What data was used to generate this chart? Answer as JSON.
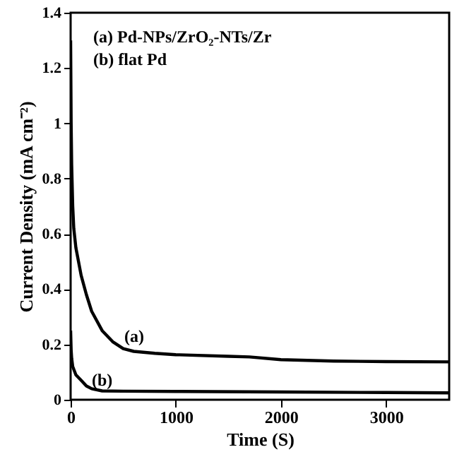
{
  "chart_data": {
    "type": "line",
    "xlabel": "Time (S)",
    "ylabel": "Current  Density (mA cm⁻²)",
    "series": [
      {
        "color": "#000000",
        "x": [
          0,
          5,
          10,
          20,
          30,
          50,
          100,
          150,
          200,
          300,
          400,
          500,
          600,
          800,
          1000,
          1500,
          1700,
          2000,
          2500,
          3000,
          3600
        ],
        "values": [
          1.3,
          1.0,
          0.85,
          0.7,
          0.62,
          0.55,
          0.45,
          0.38,
          0.32,
          0.25,
          0.21,
          0.185,
          0.175,
          0.168,
          0.163,
          0.157,
          0.155,
          0.145,
          0.14,
          0.138,
          0.137
        ]
      },
      {
        "color": "#000000",
        "x": [
          0,
          5,
          10,
          20,
          50,
          100,
          150,
          200,
          300,
          500,
          1000,
          2000,
          3000,
          3600
        ],
        "values": [
          0.25,
          0.18,
          0.15,
          0.12,
          0.09,
          0.07,
          0.05,
          0.04,
          0.032,
          0.031,
          0.03,
          0.028,
          0.026,
          0.025
        ]
      }
    ],
    "xlim": [
      0,
      3600
    ],
    "xticks": [
      0,
      1000,
      2000,
      3000
    ],
    "ylim": [
      0,
      1.4
    ],
    "yticks": [
      0,
      0.2,
      0.4,
      0.6,
      0.8,
      1,
      1.2,
      1.4
    ],
    "annotations": [
      "(a) Pd-NPs/ZrO₂-NTs/Zr",
      "(b) flat Pd",
      "(a)",
      "(b)"
    ],
    "grid": false,
    "marker": "none",
    "line_style": "solid"
  }
}
